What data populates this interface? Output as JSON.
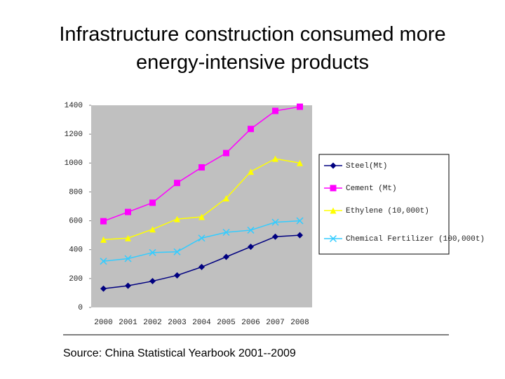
{
  "chart_data": {
    "type": "line",
    "title": [
      "Infrastructure construction consumed more",
      "energy-intensive products"
    ],
    "source": "Source: China Statistical Yearbook 2001--2009",
    "categories": [
      "2000",
      "2001",
      "2002",
      "2003",
      "2004",
      "2005",
      "2006",
      "2007",
      "2008"
    ],
    "series": [
      {
        "name": "Steel(Mt)",
        "color": "#000080",
        "marker": "diamond",
        "values": [
          130,
          150,
          182,
          222,
          280,
          350,
          420,
          490,
          500
        ]
      },
      {
        "name": "Cement (Mt)",
        "color": "#ff00ff",
        "marker": "square",
        "values": [
          597,
          661,
          725,
          862,
          970,
          1069,
          1236,
          1361,
          1390
        ]
      },
      {
        "name": "Ethylene (10,000t)",
        "color": "#ffff00",
        "marker": "triangle",
        "values": [
          470,
          480,
          541,
          612,
          627,
          756,
          940,
          1030,
          1000
        ]
      },
      {
        "name": "Chemical Fertilizer (100,000t)",
        "color": "#33ccff",
        "marker": "x",
        "values": [
          320,
          338,
          380,
          385,
          480,
          520,
          535,
          590,
          600
        ]
      }
    ],
    "ylim": [
      0,
      1400
    ],
    "yticks": [
      0,
      200,
      400,
      600,
      800,
      1000,
      1200,
      1400
    ]
  }
}
